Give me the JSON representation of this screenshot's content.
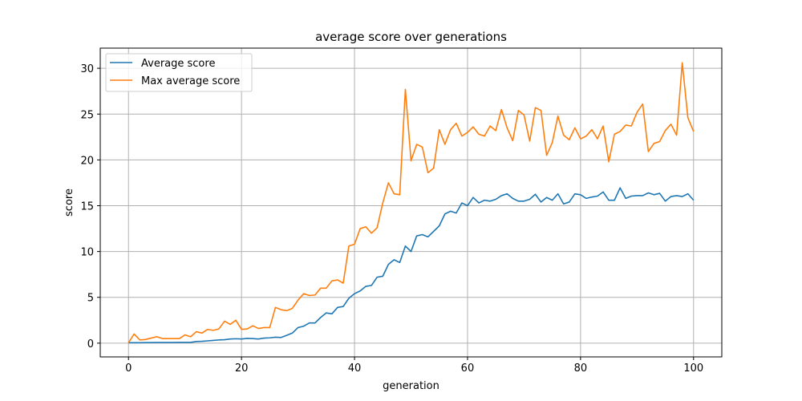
{
  "chart_data": {
    "type": "line",
    "title": "average score over generations",
    "xlabel": "generation",
    "ylabel": "score",
    "xlim": [
      -5,
      105
    ],
    "ylim": [
      -1.5,
      32.2
    ],
    "xticks": [
      0,
      20,
      40,
      60,
      80,
      100
    ],
    "yticks": [
      0,
      5,
      10,
      15,
      20,
      25,
      30
    ],
    "grid": true,
    "legend_position": "top-left",
    "x": [
      0,
      1,
      2,
      3,
      4,
      5,
      6,
      7,
      8,
      9,
      10,
      11,
      12,
      13,
      14,
      15,
      16,
      17,
      18,
      19,
      20,
      21,
      22,
      23,
      24,
      25,
      26,
      27,
      28,
      29,
      30,
      31,
      32,
      33,
      34,
      35,
      36,
      37,
      38,
      39,
      40,
      41,
      42,
      43,
      44,
      45,
      46,
      47,
      48,
      49,
      50,
      51,
      52,
      53,
      54,
      55,
      56,
      57,
      58,
      59,
      60,
      61,
      62,
      63,
      64,
      65,
      66,
      67,
      68,
      69,
      70,
      71,
      72,
      73,
      74,
      75,
      76,
      77,
      78,
      79,
      80,
      81,
      82,
      83,
      84,
      85,
      86,
      87,
      88,
      89,
      90,
      91,
      92,
      93,
      94,
      95,
      96,
      97,
      98,
      99,
      100
    ],
    "series": [
      {
        "name": "Average score",
        "color": "#1f77b4",
        "values": [
          0.05,
          0.05,
          0.05,
          0.06,
          0.06,
          0.07,
          0.07,
          0.07,
          0.07,
          0.08,
          0.08,
          0.08,
          0.18,
          0.2,
          0.25,
          0.3,
          0.35,
          0.38,
          0.45,
          0.48,
          0.45,
          0.52,
          0.5,
          0.45,
          0.55,
          0.58,
          0.65,
          0.62,
          0.85,
          1.1,
          1.7,
          1.85,
          2.2,
          2.2,
          2.8,
          3.3,
          3.2,
          3.9,
          4.0,
          4.9,
          5.4,
          5.7,
          6.2,
          6.3,
          7.2,
          7.3,
          8.6,
          9.1,
          8.8,
          10.6,
          10.0,
          11.7,
          11.85,
          11.6,
          12.2,
          12.8,
          14.1,
          14.4,
          14.2,
          15.3,
          15.0,
          15.9,
          15.3,
          15.6,
          15.5,
          15.7,
          16.1,
          16.3,
          15.8,
          15.5,
          15.5,
          15.7,
          16.25,
          15.4,
          15.9,
          15.6,
          16.3,
          15.2,
          15.4,
          16.3,
          16.2,
          15.8,
          15.95,
          16.05,
          16.5,
          15.6,
          15.6,
          16.95,
          15.8,
          16.05,
          16.1,
          16.1,
          16.4,
          16.2,
          16.35,
          15.5,
          16.0,
          16.1,
          16.0,
          16.3,
          15.6
        ]
      },
      {
        "name": "Max average score",
        "color": "#ff7f0e",
        "values": [
          0.05,
          1.0,
          0.35,
          0.4,
          0.55,
          0.7,
          0.5,
          0.5,
          0.5,
          0.5,
          0.9,
          0.7,
          1.25,
          1.1,
          1.5,
          1.4,
          1.55,
          2.4,
          2.05,
          2.5,
          1.5,
          1.55,
          1.9,
          1.6,
          1.7,
          1.7,
          3.9,
          3.65,
          3.55,
          3.8,
          4.7,
          5.4,
          5.2,
          5.25,
          6.0,
          6.0,
          6.8,
          6.9,
          6.55,
          10.6,
          10.8,
          12.5,
          12.7,
          12.0,
          12.6,
          15.3,
          17.5,
          16.3,
          16.2,
          27.7,
          19.9,
          21.7,
          21.4,
          18.6,
          19.1,
          23.3,
          21.7,
          23.3,
          24.0,
          22.6,
          23.0,
          23.6,
          22.8,
          22.6,
          23.7,
          23.2,
          25.5,
          23.5,
          22.1,
          25.4,
          24.9,
          22.05,
          25.7,
          25.4,
          20.5,
          21.9,
          24.8,
          22.7,
          22.2,
          23.5,
          22.3,
          22.6,
          23.3,
          22.3,
          23.7,
          19.8,
          22.8,
          23.1,
          23.8,
          23.7,
          25.2,
          26.1,
          20.9,
          21.8,
          22.0,
          23.2,
          23.9,
          22.7,
          30.6,
          24.6,
          23.1
        ]
      }
    ]
  }
}
